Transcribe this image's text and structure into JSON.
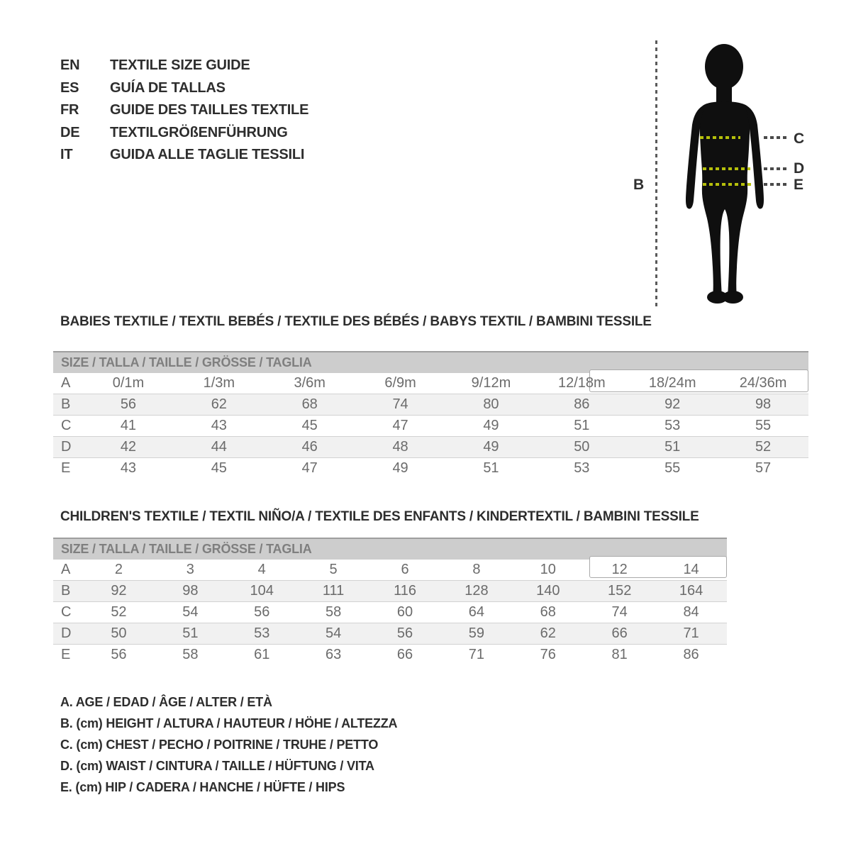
{
  "languages": [
    {
      "code": "EN",
      "label": "TEXTILE SIZE GUIDE"
    },
    {
      "code": "ES",
      "label": "GUÍA DE TALLAS"
    },
    {
      "code": "FR",
      "label": "GUIDE DES TAILLES TEXTILE"
    },
    {
      "code": "DE",
      "label": "TEXTILGRÖßENFÜHRUNG"
    },
    {
      "code": "IT",
      "label": "GUIDA ALLE TAGLIE TESSILI"
    }
  ],
  "figure": {
    "height_label": "B",
    "chest_label": "C",
    "waist_label": "D",
    "hip_label": "E",
    "accent_color": "#b5bf0b",
    "silhouette_color": "#0f0f0f"
  },
  "babies": {
    "heading": "BABIES TEXTILE / TEXTIL BEBÉS / TEXTILE DES BÉBÉS / BABYS TEXTIL  / BAMBINI TESSILE",
    "size_header": "SIZE / TALLA / TAILLE / GRÖSSE / TAGLIA",
    "rows": [
      {
        "label": "A",
        "values": [
          "0/1m",
          "1/3m",
          "3/6m",
          "6/9m",
          "9/12m",
          "12/18m",
          "18/24m",
          "24/36m"
        ]
      },
      {
        "label": "B",
        "values": [
          "56",
          "62",
          "68",
          "74",
          "80",
          "86",
          "92",
          "98"
        ]
      },
      {
        "label": "C",
        "values": [
          "41",
          "43",
          "45",
          "47",
          "49",
          "51",
          "53",
          "55"
        ]
      },
      {
        "label": "D",
        "values": [
          "42",
          "44",
          "46",
          "48",
          "49",
          "50",
          "51",
          "52"
        ]
      },
      {
        "label": "E",
        "values": [
          "43",
          "45",
          "47",
          "49",
          "51",
          "53",
          "55",
          "57"
        ]
      }
    ]
  },
  "children": {
    "heading": "CHILDREN'S TEXTILE / TEXTIL NIÑO/A / TEXTILE DES ENFANTS / KINDERTEXTIL / BAMBINI TESSILE",
    "size_header": "SIZE / TALLA / TAILLE / GRÖSSE / TAGLIA",
    "rows": [
      {
        "label": "A",
        "values": [
          "2",
          "3",
          "4",
          "5",
          "6",
          "8",
          "10",
          "12",
          "14"
        ]
      },
      {
        "label": "B",
        "values": [
          "92",
          "98",
          "104",
          "111",
          "116",
          "128",
          "140",
          "152",
          "164"
        ]
      },
      {
        "label": "C",
        "values": [
          "52",
          "54",
          "56",
          "58",
          "60",
          "64",
          "68",
          "74",
          "84"
        ]
      },
      {
        "label": "D",
        "values": [
          "50",
          "51",
          "53",
          "54",
          "56",
          "59",
          "62",
          "66",
          "71"
        ]
      },
      {
        "label": "E",
        "values": [
          "56",
          "58",
          "61",
          "63",
          "66",
          "71",
          "76",
          "81",
          "86"
        ]
      }
    ]
  },
  "legend": [
    "A. AGE / EDAD / ÂGE / ALTER / ETÀ",
    "B. (cm) HEIGHT / ALTURA / HAUTEUR / HÖHE / ALTEZZA",
    "C. (cm) CHEST / PECHO / POITRINE / TRUHE / PETTO",
    "D. (cm) WAIST / CINTURA / TAILLE / HÜFTUNG / VITA",
    "E. (cm) HIP / CADERA / HANCHE / HÜFTE / HIPS"
  ]
}
